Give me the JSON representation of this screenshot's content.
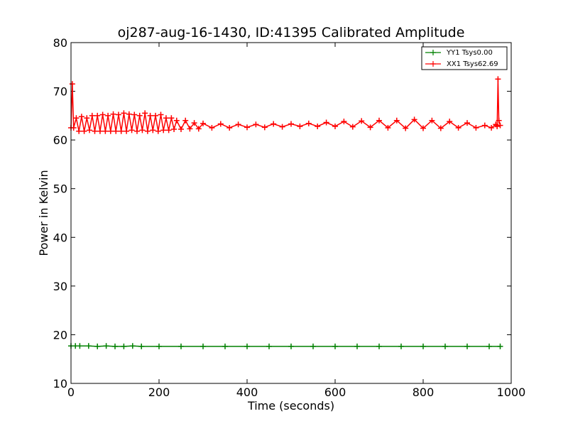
{
  "chart_data": {
    "type": "line",
    "title": "oj287-aug-16-1430, ID:41395 Calibrated Amplitude",
    "xlabel": "Time (seconds)",
    "ylabel": "Power in Kelvin",
    "xlim": [
      0,
      1000
    ],
    "ylim": [
      10,
      80
    ],
    "x_ticks": [
      0,
      200,
      400,
      600,
      800,
      1000
    ],
    "y_ticks": [
      10,
      20,
      30,
      40,
      50,
      60,
      70,
      80
    ],
    "grid": false,
    "legend_position": "top-right",
    "marker": "+",
    "series": [
      {
        "name": "YY1 Tsys0.00",
        "color": "#008000",
        "x": [
          0,
          10,
          20,
          40,
          60,
          80,
          100,
          120,
          140,
          160,
          200,
          250,
          300,
          350,
          400,
          450,
          500,
          550,
          600,
          650,
          700,
          750,
          800,
          850,
          900,
          950,
          975
        ],
        "y": [
          17.7,
          17.7,
          17.7,
          17.7,
          17.6,
          17.7,
          17.6,
          17.6,
          17.7,
          17.6,
          17.6,
          17.6,
          17.6,
          17.6,
          17.6,
          17.6,
          17.6,
          17.6,
          17.6,
          17.6,
          17.6,
          17.6,
          17.6,
          17.6,
          17.6,
          17.6,
          17.6
        ]
      },
      {
        "name": "XX1 Tsys62.69",
        "color": "#ff0000",
        "x": [
          0,
          3,
          6,
          12,
          18,
          24,
          30,
          36,
          42,
          48,
          54,
          60,
          66,
          72,
          78,
          84,
          90,
          96,
          102,
          108,
          114,
          120,
          126,
          132,
          138,
          144,
          150,
          156,
          162,
          168,
          174,
          180,
          186,
          192,
          198,
          204,
          210,
          216,
          222,
          228,
          234,
          240,
          250,
          260,
          270,
          280,
          290,
          300,
          320,
          340,
          360,
          380,
          400,
          420,
          440,
          460,
          480,
          500,
          520,
          540,
          560,
          580,
          600,
          620,
          640,
          660,
          680,
          700,
          720,
          740,
          760,
          780,
          800,
          820,
          840,
          860,
          880,
          900,
          920,
          940,
          955,
          965,
          968,
          970,
          972,
          975
        ],
        "y": [
          62.5,
          71.5,
          62.5,
          64.5,
          61.8,
          64.8,
          61.8,
          64.5,
          62.0,
          65.0,
          61.8,
          65.0,
          61.8,
          65.2,
          61.8,
          65.0,
          61.8,
          65.3,
          61.8,
          65.2,
          61.8,
          65.5,
          61.8,
          65.3,
          62.0,
          65.2,
          61.8,
          65.0,
          62.0,
          65.5,
          61.8,
          65.0,
          62.0,
          65.0,
          61.8,
          65.2,
          62.0,
          64.5,
          62.0,
          64.5,
          62.2,
          64.0,
          62.2,
          64.0,
          62.3,
          63.5,
          62.3,
          63.4,
          62.5,
          63.3,
          62.5,
          63.2,
          62.6,
          63.2,
          62.6,
          63.3,
          62.7,
          63.3,
          62.8,
          63.4,
          62.8,
          63.6,
          62.8,
          63.8,
          62.7,
          63.9,
          62.6,
          64.0,
          62.5,
          64.0,
          62.4,
          64.2,
          62.4,
          64.0,
          62.4,
          63.8,
          62.5,
          63.5,
          62.5,
          63.0,
          62.5,
          63.2,
          62.8,
          72.5,
          64.0,
          63.0
        ]
      }
    ]
  }
}
